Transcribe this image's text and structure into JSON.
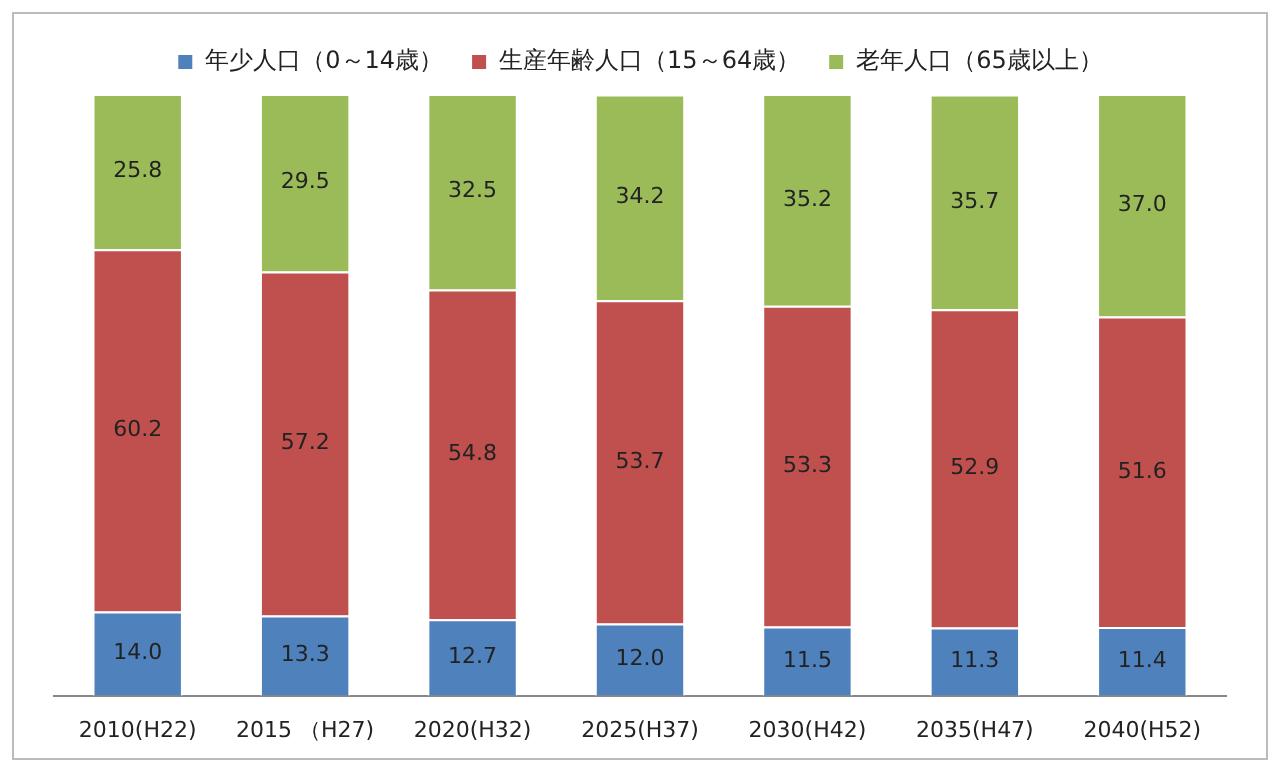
{
  "chart_data": {
    "type": "bar",
    "stacked": true,
    "legend": "top",
    "grid": false,
    "ylim": [
      0,
      100
    ],
    "tick_labels": "x",
    "categories": [
      "2010(H22)",
      "2015 （H27)",
      "2020(H32)",
      "2025(H37)",
      "2030(H42)",
      "2035(H47)",
      "2040(H52)"
    ],
    "series": [
      {
        "name": "年少人口（0～14歳）",
        "color": "#4f81bd",
        "values": [
          14.0,
          13.3,
          12.7,
          12.0,
          11.5,
          11.3,
          11.4
        ],
        "value_labels": [
          "14.0",
          "13.3",
          "12.7",
          "12.0",
          "11.5",
          "11.3",
          "11.4"
        ]
      },
      {
        "name": "生産年齢人口（15～64歳）",
        "color": "#c0504d",
        "values": [
          60.2,
          57.2,
          54.8,
          53.7,
          53.3,
          52.9,
          51.6
        ],
        "value_labels": [
          "60.2",
          "57.2",
          "54.8",
          "53.7",
          "53.3",
          "52.9",
          "51.6"
        ]
      },
      {
        "name": "老年人口（65歳以上）",
        "color": "#9bbb59",
        "values": [
          25.8,
          29.5,
          32.5,
          34.2,
          35.2,
          35.7,
          37.0
        ],
        "value_labels": [
          "25.8",
          "29.5",
          "32.5",
          "34.2",
          "35.2",
          "35.7",
          "37.0"
        ]
      }
    ]
  }
}
